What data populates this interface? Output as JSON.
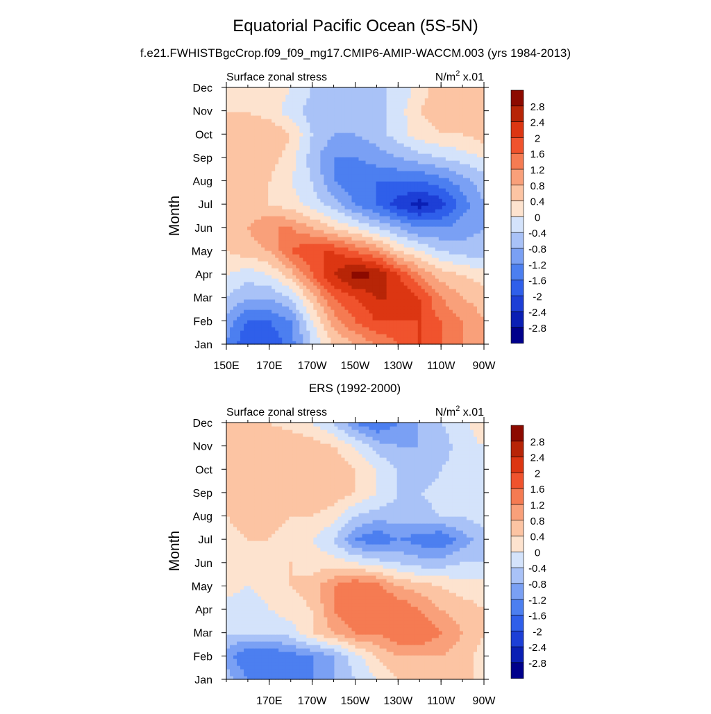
{
  "title": "Equatorial Pacific Ocean (5S-5N)",
  "subtitle": "f.e21.FWHISTBgcCrop.f09_f09_mg17.CMIP6-AMIP-WACCM.003 (yrs 1984-2013)",
  "colors": {
    "levels": [
      "#00008b",
      "#0a1fb4",
      "#1d3fd6",
      "#2f5fea",
      "#4c7ff0",
      "#7aa0f4",
      "#a9c2f7",
      "#d4e3fb",
      "#fde3cf",
      "#fcc4a3",
      "#f9a07a",
      "#f57b52",
      "#f0532d",
      "#dc3612",
      "#b72507",
      "#8c0a00"
    ]
  },
  "chart_data": [
    {
      "type": "heatmap",
      "name": "model",
      "panel_title": "",
      "left_label": "Surface zonal stress",
      "units_text": "N/m",
      "units_sup": "2",
      "units_suffix": " x.01",
      "ylabel": "Month",
      "months": [
        "Jan",
        "Feb",
        "Mar",
        "Apr",
        "May",
        "Jun",
        "Jul",
        "Aug",
        "Sep",
        "Oct",
        "Nov",
        "Dec"
      ],
      "xticks": [
        {
          "lon": 150,
          "label": "150E"
        },
        {
          "lon": 170,
          "label": "170E"
        },
        {
          "lon": 190,
          "label": "170W"
        },
        {
          "lon": 210,
          "label": "150W"
        },
        {
          "lon": 230,
          "label": "130W"
        },
        {
          "lon": 250,
          "label": "110W"
        },
        {
          "lon": 270,
          "label": "90W"
        }
      ],
      "xlim": [
        150,
        270
      ],
      "colorbar_labels": [
        "2.8",
        "2.4",
        "2",
        "1.6",
        "1.2",
        "0.8",
        "0.4",
        "0",
        "-0.4",
        "-0.8",
        "-1.2",
        "-1.6",
        "-2",
        "-2.4",
        "-2.8"
      ],
      "lons": [
        150,
        160,
        170,
        180,
        190,
        200,
        210,
        220,
        230,
        240,
        250,
        260,
        270
      ],
      "values": [
        [
          -1.2,
          -2.0,
          -2.0,
          -1.4,
          -0.4,
          0.4,
          0.8,
          1.2,
          1.6,
          2.0,
          1.6,
          1.2,
          0.8
        ],
        [
          -1.0,
          -1.6,
          -1.6,
          -1.2,
          0.0,
          1.0,
          1.6,
          2.0,
          2.0,
          2.0,
          1.6,
          1.2,
          0.8
        ],
        [
          -0.4,
          -0.8,
          -0.8,
          -0.4,
          0.6,
          1.6,
          2.0,
          2.4,
          2.4,
          2.0,
          1.2,
          0.8,
          0.6
        ],
        [
          0.0,
          -0.2,
          0.0,
          0.6,
          1.6,
          2.4,
          3.0,
          2.8,
          2.0,
          1.2,
          0.6,
          0.4,
          0.2
        ],
        [
          0.4,
          0.6,
          0.8,
          1.6,
          2.0,
          2.0,
          1.6,
          1.2,
          0.4,
          0.0,
          -0.4,
          -0.6,
          -0.6
        ],
        [
          0.6,
          0.8,
          1.2,
          1.2,
          0.8,
          0.4,
          0.0,
          -0.4,
          -0.8,
          -1.2,
          -1.2,
          -1.0,
          -0.8
        ],
        [
          0.6,
          0.6,
          0.4,
          0.2,
          -0.2,
          -0.6,
          -1.2,
          -1.6,
          -2.2,
          -2.6,
          -2.2,
          -1.4,
          -0.8
        ],
        [
          0.6,
          0.8,
          0.4,
          0.0,
          -0.4,
          -1.2,
          -1.6,
          -1.6,
          -1.6,
          -1.6,
          -1.4,
          -1.0,
          -0.6
        ],
        [
          0.6,
          0.8,
          0.6,
          0.2,
          -0.6,
          -1.2,
          -1.2,
          -1.0,
          -0.8,
          -0.6,
          -0.4,
          -0.2,
          0.0
        ],
        [
          0.4,
          0.6,
          0.8,
          0.4,
          -0.4,
          -0.8,
          -0.8,
          -0.6,
          -0.2,
          0.2,
          0.4,
          0.4,
          0.6
        ],
        [
          0.4,
          0.4,
          0.2,
          -0.2,
          -0.6,
          -0.8,
          -0.8,
          -0.6,
          -0.2,
          0.4,
          0.6,
          0.8,
          0.8
        ],
        [
          0.2,
          0.4,
          0.4,
          0.0,
          -0.4,
          -0.6,
          -0.6,
          -0.4,
          -0.4,
          0.2,
          0.6,
          0.6,
          0.6
        ]
      ]
    },
    {
      "type": "heatmap",
      "name": "ers",
      "panel_title": "ERS (1992-2000)",
      "left_label": "Surface zonal stress",
      "units_text": "N/m",
      "units_sup": "2",
      "units_suffix": " x.01",
      "ylabel": "Month",
      "months": [
        "Jan",
        "Feb",
        "Mar",
        "Apr",
        "May",
        "Jun",
        "Jul",
        "Aug",
        "Sep",
        "Oct",
        "Nov",
        "Dec"
      ],
      "xticks": [
        {
          "lon": 170,
          "label": "170E"
        },
        {
          "lon": 190,
          "label": "170W"
        },
        {
          "lon": 210,
          "label": "150W"
        },
        {
          "lon": 230,
          "label": "130W"
        },
        {
          "lon": 250,
          "label": "110W"
        },
        {
          "lon": 270,
          "label": "90W"
        }
      ],
      "xlim": [
        150,
        270
      ],
      "colorbar_labels": [
        "2.8",
        "2.4",
        "2",
        "1.6",
        "1.2",
        "0.8",
        "0.4",
        "0",
        "-0.4",
        "-0.8",
        "-1.2",
        "-1.6",
        "-2",
        "-2.4",
        "-2.8"
      ],
      "lons": [
        150,
        160,
        170,
        180,
        190,
        200,
        210,
        220,
        230,
        240,
        250,
        260,
        270
      ],
      "values": [
        [
          -0.6,
          -1.2,
          -1.4,
          -1.4,
          -1.2,
          -0.8,
          -0.4,
          0.0,
          0.4,
          0.6,
          0.6,
          0.4,
          0.4
        ],
        [
          -1.0,
          -1.6,
          -1.6,
          -1.4,
          -1.2,
          -0.8,
          -0.2,
          0.4,
          0.8,
          0.8,
          0.8,
          0.6,
          0.2
        ],
        [
          -0.4,
          -0.4,
          -0.4,
          -0.2,
          0.4,
          0.8,
          1.2,
          1.2,
          1.6,
          1.6,
          1.2,
          0.8,
          0.4
        ],
        [
          -0.2,
          -0.4,
          0.0,
          0.2,
          0.4,
          1.2,
          1.6,
          1.6,
          1.6,
          1.2,
          0.8,
          0.6,
          0.4
        ],
        [
          0.2,
          0.0,
          0.2,
          0.4,
          0.6,
          1.2,
          1.6,
          1.4,
          0.8,
          0.6,
          0.4,
          0.2,
          0.2
        ],
        [
          0.0,
          0.2,
          0.4,
          0.4,
          0.2,
          0.2,
          0.0,
          -0.2,
          -0.4,
          -0.6,
          -0.6,
          -0.4,
          -0.4
        ],
        [
          0.2,
          0.4,
          0.4,
          0.2,
          0.0,
          -0.4,
          -1.2,
          -1.6,
          -1.2,
          -1.4,
          -1.6,
          -1.0,
          -0.6
        ],
        [
          0.4,
          0.6,
          0.6,
          0.4,
          0.4,
          0.2,
          -0.4,
          -0.6,
          -0.6,
          -0.6,
          -0.4,
          -0.4,
          -0.2
        ],
        [
          0.6,
          0.6,
          0.6,
          0.8,
          0.8,
          0.6,
          0.4,
          0.0,
          -0.4,
          -0.4,
          -0.2,
          -0.2,
          0.0
        ],
        [
          0.6,
          0.8,
          0.6,
          0.6,
          0.8,
          0.8,
          0.4,
          0.0,
          -0.4,
          -0.8,
          -0.4,
          -0.2,
          0.0
        ],
        [
          0.6,
          0.8,
          0.8,
          0.8,
          0.6,
          0.4,
          0.0,
          -0.6,
          -0.8,
          -0.8,
          -0.6,
          -0.2,
          0.0
        ],
        [
          0.4,
          0.6,
          0.4,
          0.2,
          0.0,
          -0.4,
          -1.2,
          -1.6,
          -1.2,
          -0.8,
          -0.4,
          -0.2,
          0.4
        ]
      ]
    }
  ]
}
